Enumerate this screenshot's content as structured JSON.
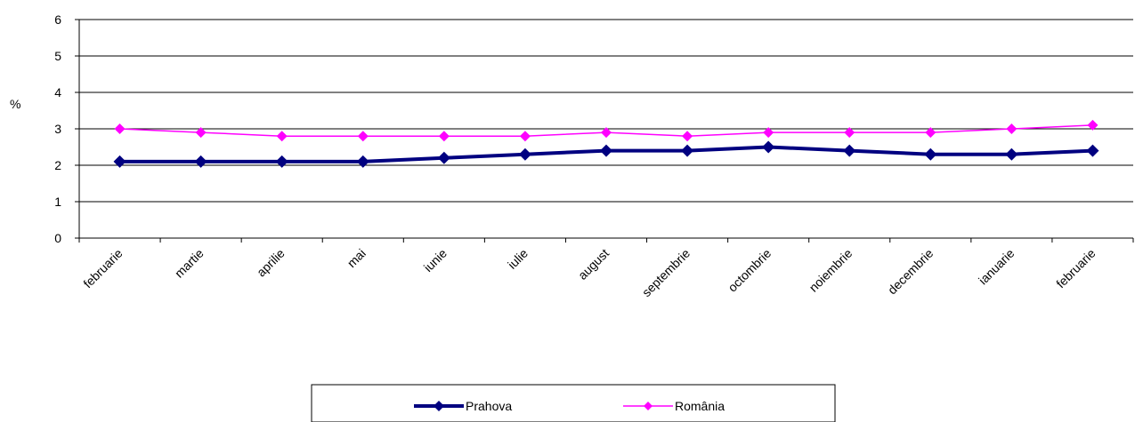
{
  "chart_data": {
    "type": "line",
    "title": "",
    "xlabel": "",
    "ylabel": "%",
    "ylim": [
      0,
      6
    ],
    "yticks": [
      0,
      1,
      2,
      3,
      4,
      5,
      6
    ],
    "grid": true,
    "legend_position": "bottom",
    "categories": [
      "februarie",
      "martie",
      "aprilie",
      "mai",
      "iunie",
      "iulie",
      "august",
      "septembrie",
      "octombrie",
      "noiembrie",
      "decembrie",
      "ianuarie",
      "februarie"
    ],
    "series": [
      {
        "name": "Prahova",
        "color": "#000080",
        "marker": "diamond",
        "values": [
          2.1,
          2.1,
          2.1,
          2.1,
          2.2,
          2.3,
          2.4,
          2.4,
          2.5,
          2.4,
          2.3,
          2.3,
          2.4
        ]
      },
      {
        "name": "România",
        "color": "#ff00ff",
        "marker": "diamond",
        "values": [
          3.0,
          2.9,
          2.8,
          2.8,
          2.8,
          2.8,
          2.9,
          2.8,
          2.9,
          2.9,
          2.9,
          3.0,
          3.1
        ]
      }
    ]
  }
}
